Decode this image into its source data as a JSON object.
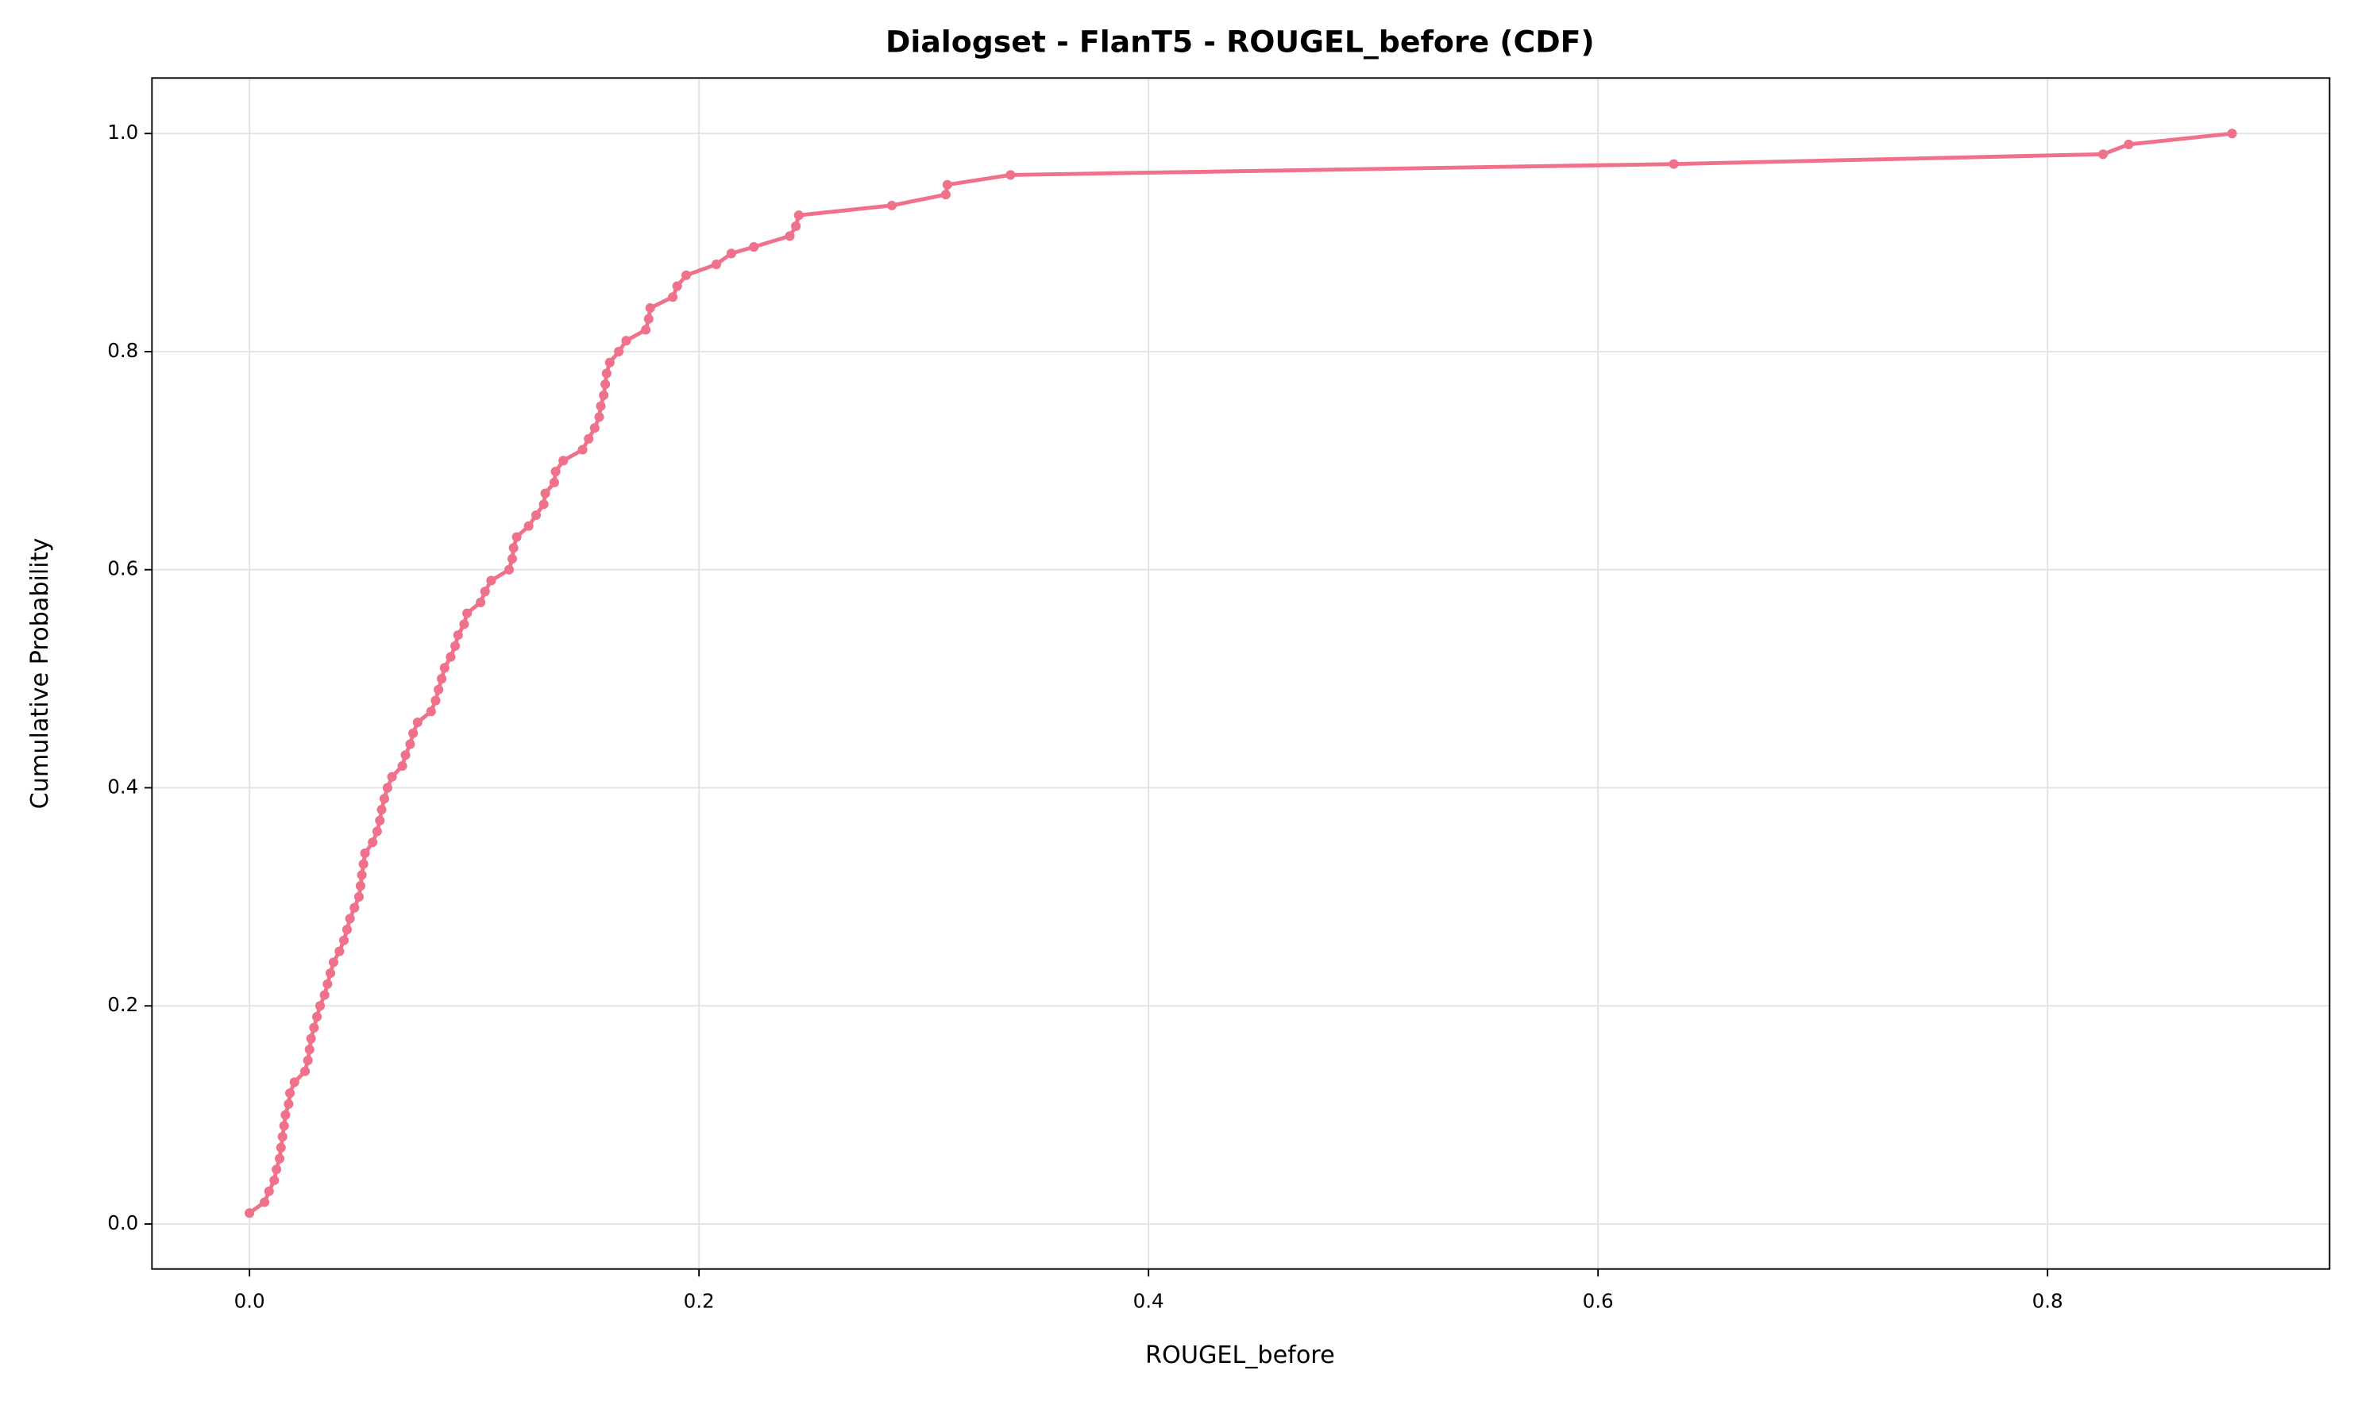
{
  "chart_data": {
    "type": "line",
    "title": "Dialogset - FlanT5 - ROUGEL_before (CDF)",
    "x_label": "ROUGEL_before",
    "y_label": "Cumulative Probability",
    "xlim": [
      -0.0434,
      0.9255
    ],
    "ylim": [
      -0.0413,
      1.0509
    ],
    "xticks": [
      {
        "value": 0,
        "label": "0.0"
      },
      0.2,
      0.4,
      0.6,
      0.8
    ],
    "yticks": [
      {
        "value": 0,
        "label": "0.0"
      },
      0.2,
      0.4,
      0.6,
      0.8,
      {
        "value": 1,
        "label": "1.0"
      }
    ],
    "grid": true,
    "series": [
      {
        "color": "#f0718a",
        "x": [
          0.0,
          0.0067,
          0.0087,
          0.011,
          0.012,
          0.0134,
          0.014,
          0.0147,
          0.0154,
          0.016,
          0.0174,
          0.018,
          0.02,
          0.0247,
          0.026,
          0.0267,
          0.0274,
          0.0287,
          0.03,
          0.0314,
          0.0334,
          0.0347,
          0.036,
          0.0374,
          0.04,
          0.042,
          0.0434,
          0.0447,
          0.0467,
          0.0487,
          0.0494,
          0.05,
          0.0507,
          0.0514,
          0.0548,
          0.0568,
          0.058,
          0.0588,
          0.06,
          0.0614,
          0.0634,
          0.068,
          0.0694,
          0.0715,
          0.0728,
          0.0748,
          0.0808,
          0.0828,
          0.0841,
          0.0855,
          0.0868,
          0.0895,
          0.0915,
          0.0928,
          0.0955,
          0.0968,
          0.1028,
          0.1048,
          0.1075,
          0.1155,
          0.1169,
          0.1175,
          0.1189,
          0.1242,
          0.1275,
          0.1309,
          0.1316,
          0.1356,
          0.1362,
          0.1396,
          0.1482,
          0.1509,
          0.1536,
          0.1556,
          0.1563,
          0.1576,
          0.1583,
          0.1589,
          0.1603,
          0.1643,
          0.1676,
          0.1763,
          0.1776,
          0.1783,
          0.1883,
          0.1903,
          0.1943,
          0.2077,
          0.2144,
          0.2244,
          0.2404,
          0.2431,
          0.2444,
          0.2858,
          0.3098,
          0.3105,
          0.3386,
          0.6337,
          0.8247,
          0.8361,
          0.8821
        ],
        "values": [
          0.01,
          0.02,
          0.03,
          0.04,
          0.05,
          0.06,
          0.07,
          0.08,
          0.09,
          0.1,
          0.11,
          0.12,
          0.13,
          0.14,
          0.15,
          0.16,
          0.17,
          0.18,
          0.19,
          0.2,
          0.21,
          0.22,
          0.23,
          0.24,
          0.25,
          0.26,
          0.27,
          0.28,
          0.29,
          0.3,
          0.31,
          0.32,
          0.33,
          0.34,
          0.35,
          0.36,
          0.37,
          0.38,
          0.39,
          0.4,
          0.41,
          0.42,
          0.43,
          0.44,
          0.45,
          0.46,
          0.47,
          0.48,
          0.49,
          0.5,
          0.51,
          0.52,
          0.53,
          0.54,
          0.55,
          0.56,
          0.57,
          0.58,
          0.59,
          0.6,
          0.61,
          0.62,
          0.63,
          0.64,
          0.65,
          0.66,
          0.67,
          0.68,
          0.69,
          0.7,
          0.71,
          0.72,
          0.73,
          0.74,
          0.75,
          0.76,
          0.77,
          0.78,
          0.79,
          0.8,
          0.81,
          0.82,
          0.83,
          0.84,
          0.85,
          0.86,
          0.87,
          0.88,
          0.89,
          0.896,
          0.906,
          0.915,
          0.925,
          0.934,
          0.944,
          0.953,
          0.962,
          0.972,
          0.981,
          0.99,
          1.0
        ]
      }
    ]
  }
}
